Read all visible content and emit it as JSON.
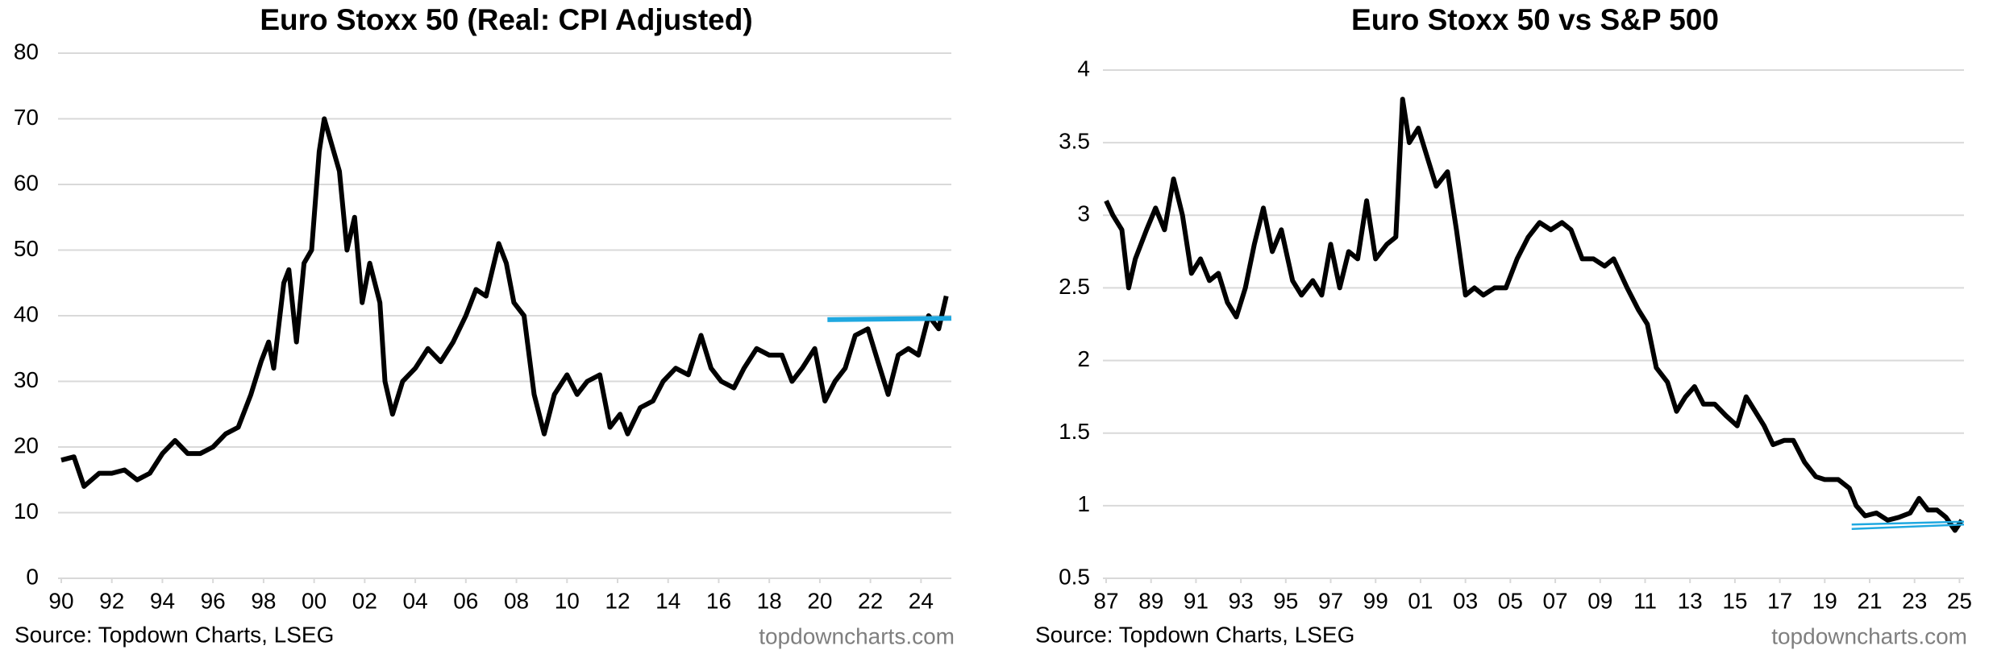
{
  "chart_data": [
    {
      "type": "line",
      "title": "Euro Stoxx 50 (Real: CPI Adjusted)",
      "source": "Source: Topdown Charts, LSEG",
      "watermark": "topdowncharts.com",
      "xlim": [
        1990,
        2025.2
      ],
      "ylim": [
        0,
        80
      ],
      "yticks": [
        0,
        10,
        20,
        30,
        40,
        50,
        60,
        70,
        80
      ],
      "grid": true,
      "xticks": [
        {
          "value": 1990,
          "label": "90"
        },
        {
          "value": 1992,
          "label": "92"
        },
        {
          "value": 1994,
          "label": "94"
        },
        {
          "value": 1996,
          "label": "96"
        },
        {
          "value": 1998,
          "label": "98"
        },
        {
          "value": 2000,
          "label": "00"
        },
        {
          "value": 2002,
          "label": "02"
        },
        {
          "value": 2004,
          "label": "04"
        },
        {
          "value": 2006,
          "label": "06"
        },
        {
          "value": 2008,
          "label": "08"
        },
        {
          "value": 2010,
          "label": "10"
        },
        {
          "value": 2012,
          "label": "12"
        },
        {
          "value": 2014,
          "label": "14"
        },
        {
          "value": 2016,
          "label": "16"
        },
        {
          "value": 2018,
          "label": "18"
        },
        {
          "value": 2020,
          "label": "20"
        },
        {
          "value": 2022,
          "label": "22"
        },
        {
          "value": 2024,
          "label": "24"
        }
      ],
      "series": [
        {
          "color": "#000000",
          "x": [
            1990,
            1990.5,
            1990.9,
            1991.5,
            1992,
            1992.5,
            1993,
            1993.5,
            1994,
            1994.5,
            1995,
            1995.5,
            1996,
            1996.5,
            1997,
            1997.5,
            1997.9,
            1998.2,
            1998.4,
            1998.8,
            1999,
            1999.3,
            1999.6,
            1999.9,
            2000.2,
            2000.4,
            2000.7,
            2001,
            2001.3,
            2001.6,
            2001.9,
            2002.2,
            2002.6,
            2002.8,
            2003.1,
            2003.5,
            2004,
            2004.5,
            2005,
            2005.5,
            2006,
            2006.4,
            2006.8,
            2007.3,
            2007.6,
            2007.9,
            2008.3,
            2008.7,
            2009.1,
            2009.5,
            2010,
            2010.4,
            2010.8,
            2011.3,
            2011.7,
            2012.1,
            2012.4,
            2012.9,
            2013.4,
            2013.8,
            2014.3,
            2014.8,
            2015.3,
            2015.7,
            2016.1,
            2016.6,
            2017,
            2017.5,
            2018,
            2018.5,
            2018.9,
            2019.3,
            2019.8,
            2020.2,
            2020.6,
            2021,
            2021.4,
            2021.9,
            2022.3,
            2022.7,
            2023.1,
            2023.5,
            2023.9,
            2024.3,
            2024.7,
            2025
          ],
          "values": [
            18,
            18.5,
            14,
            16,
            16,
            16.5,
            15,
            16,
            19,
            21,
            19,
            19,
            20,
            22,
            23,
            28,
            33,
            36,
            32,
            45,
            47,
            36,
            48,
            50,
            65,
            70,
            66,
            62,
            50,
            55,
            42,
            48,
            42,
            30,
            25,
            30,
            32,
            35,
            33,
            36,
            40,
            44,
            43,
            51,
            48,
            42,
            40,
            28,
            22,
            28,
            31,
            28,
            30,
            31,
            23,
            25,
            22,
            26,
            27,
            30,
            32,
            31,
            37,
            32,
            30,
            29,
            32,
            35,
            34,
            34,
            30,
            32,
            35,
            27,
            30,
            32,
            37,
            38,
            33,
            28,
            34,
            35,
            34,
            40,
            38,
            43
          ]
        }
      ],
      "reference_lines": [
        {
          "color": "#1fa8e0",
          "x": [
            2020.3,
            2025.2
          ],
          "y": [
            39.4,
            39.6
          ]
        }
      ]
    },
    {
      "type": "line",
      "title": "Euro Stoxx 50 vs S&P 500",
      "source": "Source: Topdown Charts, LSEG",
      "watermark": "topdowncharts.com",
      "xlim": [
        1987,
        2025.2
      ],
      "ylim": [
        0.5,
        4
      ],
      "yticks": [
        0.5,
        1,
        1.5,
        2,
        2.5,
        3,
        3.5,
        4
      ],
      "grid": true,
      "xticks": [
        {
          "value": 1987,
          "label": "87"
        },
        {
          "value": 1989,
          "label": "89"
        },
        {
          "value": 1991,
          "label": "91"
        },
        {
          "value": 1993,
          "label": "93"
        },
        {
          "value": 1995,
          "label": "95"
        },
        {
          "value": 1997,
          "label": "97"
        },
        {
          "value": 1999,
          "label": "99"
        },
        {
          "value": 2001,
          "label": "01"
        },
        {
          "value": 2003,
          "label": "03"
        },
        {
          "value": 2005,
          "label": "05"
        },
        {
          "value": 2007,
          "label": "07"
        },
        {
          "value": 2009,
          "label": "09"
        },
        {
          "value": 2011,
          "label": "11"
        },
        {
          "value": 2013,
          "label": "13"
        },
        {
          "value": 2015,
          "label": "15"
        },
        {
          "value": 2017,
          "label": "17"
        },
        {
          "value": 2019,
          "label": "19"
        },
        {
          "value": 2021,
          "label": "21"
        },
        {
          "value": 2023,
          "label": "23"
        },
        {
          "value": 2025,
          "label": "25"
        }
      ],
      "series": [
        {
          "color": "#000000",
          "x": [
            1987,
            1987.3,
            1987.7,
            1988,
            1988.3,
            1988.8,
            1989.2,
            1989.6,
            1990,
            1990.4,
            1990.8,
            1991.2,
            1991.6,
            1992,
            1992.4,
            1992.8,
            1993.2,
            1993.6,
            1994,
            1994.4,
            1994.8,
            1995.3,
            1995.7,
            1996.2,
            1996.6,
            1997,
            1997.4,
            1997.8,
            1998.2,
            1998.6,
            1999,
            1999.5,
            1999.9,
            2000.2,
            2000.5,
            2000.9,
            2001.3,
            2001.7,
            2002.2,
            2002.6,
            2003,
            2003.4,
            2003.8,
            2004.3,
            2004.8,
            2005.3,
            2005.8,
            2006.3,
            2006.8,
            2007.3,
            2007.7,
            2008.2,
            2008.7,
            2009.2,
            2009.6,
            2010.2,
            2010.7,
            2011.1,
            2011.5,
            2012,
            2012.4,
            2012.8,
            2013.2,
            2013.6,
            2014.1,
            2014.6,
            2015.1,
            2015.5,
            2015.9,
            2016.3,
            2016.7,
            2017.2,
            2017.6,
            2018.1,
            2018.6,
            2019,
            2019.6,
            2020.1,
            2020.4,
            2020.8,
            2021.3,
            2021.8,
            2022.3,
            2022.8,
            2023.2,
            2023.6,
            2024,
            2024.4,
            2024.8,
            2025.1
          ],
          "values": [
            3.1,
            3.0,
            2.9,
            2.5,
            2.7,
            2.9,
            3.05,
            2.9,
            3.25,
            3.0,
            2.6,
            2.7,
            2.55,
            2.6,
            2.4,
            2.3,
            2.5,
            2.8,
            3.05,
            2.75,
            2.9,
            2.55,
            2.45,
            2.55,
            2.45,
            2.8,
            2.5,
            2.75,
            2.7,
            3.1,
            2.7,
            2.8,
            2.85,
            3.8,
            3.5,
            3.6,
            3.4,
            3.2,
            3.3,
            2.9,
            2.45,
            2.5,
            2.45,
            2.5,
            2.5,
            2.7,
            2.85,
            2.95,
            2.9,
            2.95,
            2.9,
            2.7,
            2.7,
            2.65,
            2.7,
            2.5,
            2.35,
            2.25,
            1.95,
            1.85,
            1.65,
            1.75,
            1.82,
            1.7,
            1.7,
            1.62,
            1.55,
            1.75,
            1.65,
            1.55,
            1.42,
            1.45,
            1.45,
            1.3,
            1.2,
            1.18,
            1.18,
            1.12,
            1.0,
            0.93,
            0.95,
            0.9,
            0.92,
            0.95,
            1.05,
            0.97,
            0.97,
            0.92,
            0.83,
            0.9
          ]
        }
      ],
      "reference_lines": [
        {
          "color": "#1fa8e0",
          "x": [
            2020.2,
            2025.2
          ],
          "y": [
            0.87,
            0.89
          ]
        },
        {
          "color": "#1fa8e0",
          "x": [
            2020.2,
            2025.2
          ],
          "y": [
            0.84,
            0.87
          ]
        }
      ]
    }
  ]
}
